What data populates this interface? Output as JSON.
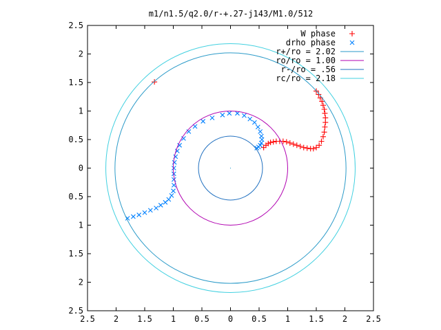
{
  "chart_data": {
    "type": "scatter",
    "title": "m1/n1.5/q2.0/r-+.27-j143/M1.0/512",
    "xlabel": "",
    "ylabel": "",
    "xlim": [
      -2.5,
      2.5
    ],
    "ylim": [
      -2.5,
      2.5
    ],
    "x_ticks": [
      "2.5",
      "2",
      "1.5",
      "1",
      "0.5",
      "0",
      "0.5",
      "1",
      "1.5",
      "2",
      "2.5"
    ],
    "y_ticks": [
      "2.5",
      "2",
      "1.5",
      "1",
      "0.5",
      "0",
      "0.5",
      "1",
      "1.5",
      "2",
      "2.5"
    ],
    "grid": false,
    "legend_position": "top-right",
    "series": [
      {
        "name": "W phase",
        "kind": "points",
        "marker": "+",
        "color": "#ff0000",
        "points": [
          [
            -1.33,
            1.51
          ],
          [
            0.58,
            0.36
          ],
          [
            0.62,
            0.4
          ],
          [
            0.66,
            0.43
          ],
          [
            0.7,
            0.45
          ],
          [
            0.75,
            0.46
          ],
          [
            0.8,
            0.47
          ],
          [
            0.86,
            0.47
          ],
          [
            0.92,
            0.47
          ],
          [
            0.98,
            0.46
          ],
          [
            1.04,
            0.44
          ],
          [
            1.1,
            0.42
          ],
          [
            1.16,
            0.4
          ],
          [
            1.22,
            0.38
          ],
          [
            1.28,
            0.36
          ],
          [
            1.34,
            0.35
          ],
          [
            1.4,
            0.34
          ],
          [
            1.45,
            0.34
          ],
          [
            1.5,
            0.36
          ],
          [
            1.55,
            0.4
          ],
          [
            1.59,
            0.47
          ],
          [
            1.62,
            0.55
          ],
          [
            1.64,
            0.63
          ],
          [
            1.65,
            0.72
          ],
          [
            1.66,
            0.8
          ],
          [
            1.66,
            0.88
          ],
          [
            1.65,
            0.96
          ],
          [
            1.64,
            1.03
          ],
          [
            1.62,
            1.1
          ],
          [
            1.6,
            1.17
          ],
          [
            1.57,
            1.23
          ],
          [
            1.54,
            1.29
          ],
          [
            1.5,
            1.35
          ]
        ]
      },
      {
        "name": "drho phase",
        "kind": "points",
        "marker": "x",
        "color": "#0080ff",
        "points": [
          [
            -1.8,
            -0.88
          ],
          [
            -1.7,
            -0.85
          ],
          [
            -1.6,
            -0.82
          ],
          [
            -1.5,
            -0.78
          ],
          [
            -1.4,
            -0.74
          ],
          [
            -1.3,
            -0.7
          ],
          [
            -1.22,
            -0.65
          ],
          [
            -1.14,
            -0.6
          ],
          [
            -1.08,
            -0.55
          ],
          [
            -1.03,
            -0.48
          ],
          [
            -1.0,
            -0.4
          ],
          [
            -0.99,
            -0.3
          ],
          [
            -0.99,
            -0.2
          ],
          [
            -0.99,
            -0.1
          ],
          [
            -0.99,
            0.0
          ],
          [
            -0.98,
            0.1
          ],
          [
            -0.96,
            0.2
          ],
          [
            -0.93,
            0.3
          ],
          [
            -0.89,
            0.4
          ],
          [
            -0.82,
            0.52
          ],
          [
            -0.73,
            0.64
          ],
          [
            -0.62,
            0.73
          ],
          [
            -0.48,
            0.82
          ],
          [
            -0.32,
            0.88
          ],
          [
            -0.14,
            0.93
          ],
          [
            -0.02,
            0.96
          ],
          [
            0.12,
            0.96
          ],
          [
            0.24,
            0.92
          ],
          [
            0.34,
            0.86
          ],
          [
            0.42,
            0.8
          ],
          [
            0.48,
            0.72
          ],
          [
            0.52,
            0.64
          ],
          [
            0.54,
            0.56
          ],
          [
            0.55,
            0.5
          ],
          [
            0.54,
            0.44
          ],
          [
            0.52,
            0.4
          ],
          [
            0.49,
            0.37
          ],
          [
            0.46,
            0.35
          ]
        ]
      },
      {
        "name": "r+/ro = 2.02",
        "kind": "circle",
        "radius": 2.02,
        "color": "#2a9ac8"
      },
      {
        "name": "ro/ro = 1.00",
        "kind": "circle",
        "radius": 1.0,
        "color": "#b000b0"
      },
      {
        "name": "r-/ro = .56",
        "kind": "circle",
        "radius": 0.56,
        "color": "#2070c0"
      },
      {
        "name": "rc/ro = 2.18",
        "kind": "circle",
        "radius": 2.18,
        "color": "#40d0e0"
      }
    ]
  }
}
